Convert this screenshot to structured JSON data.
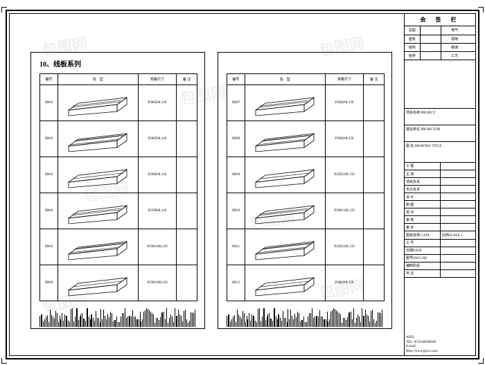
{
  "section_title": "10、线板系列",
  "columns": {
    "id": "编号",
    "shape": "造　型",
    "spec": "规格尺寸",
    "note": "备 注"
  },
  "left_rows": [
    {
      "id": "XB01",
      "spec": "P30H50L120"
    },
    {
      "id": "XB02",
      "spec": "P20H50L120"
    },
    {
      "id": "XB03",
      "spec": "P20H50L118"
    },
    {
      "id": "XB04",
      "spec": "P25H60L120"
    },
    {
      "id": "XB05",
      "spec": "P25H100L220"
    },
    {
      "id": "XB06",
      "spec": "P25H100L220"
    }
  ],
  "right_rows": [
    {
      "id": "XB07",
      "spec": "P30H20L150"
    },
    {
      "id": "XB08",
      "spec": "P30H20L150"
    },
    {
      "id": "XB09",
      "spec": "P25H120L150"
    },
    {
      "id": "XB10",
      "spec": "P30H120L150"
    },
    {
      "id": "XB11",
      "spec": "P25H120L150"
    },
    {
      "id": "XB12",
      "spec": "P30H20L150"
    }
  ],
  "side": {
    "title": "会 签 栏",
    "sigs": [
      {
        "a": "总图",
        "b": "",
        "c": "电气"
      },
      {
        "a": "建筑",
        "b": "",
        "c": "弱电"
      },
      {
        "a": "结构",
        "b": "",
        "c": "暖通"
      },
      {
        "a": "给排",
        "b": "",
        "c": "工艺"
      }
    ],
    "project_label": "项目名称 PROJECT",
    "owner_label": "建设单位 PROJECTOR",
    "drawing_label": "图 名 DRAWING TITLE",
    "meta": [
      "工 程",
      "主 持",
      "项目负责",
      "专业负责",
      "设 计",
      "制 图",
      "校 对",
      "审 核",
      "审 定"
    ],
    "meta2": [
      {
        "l": "图纸目录:CATA",
        "r": "比例SCALE 1"
      },
      {
        "l": "工 号",
        "r": ""
      },
      {
        "l": "日期DATE",
        "r": ""
      },
      {
        "l": "图号DWG.NO",
        "r": ""
      },
      {
        "l": "编制阶段",
        "r": ""
      },
      {
        "l": "专 业",
        "r": ""
      }
    ],
    "footer": {
      "add": "ADD:",
      "tel": "TEL: 0519-88588585",
      "email": "E-mail:",
      "http": "Http://www.jgcvs.com"
    }
  },
  "watermark": "包图网"
}
